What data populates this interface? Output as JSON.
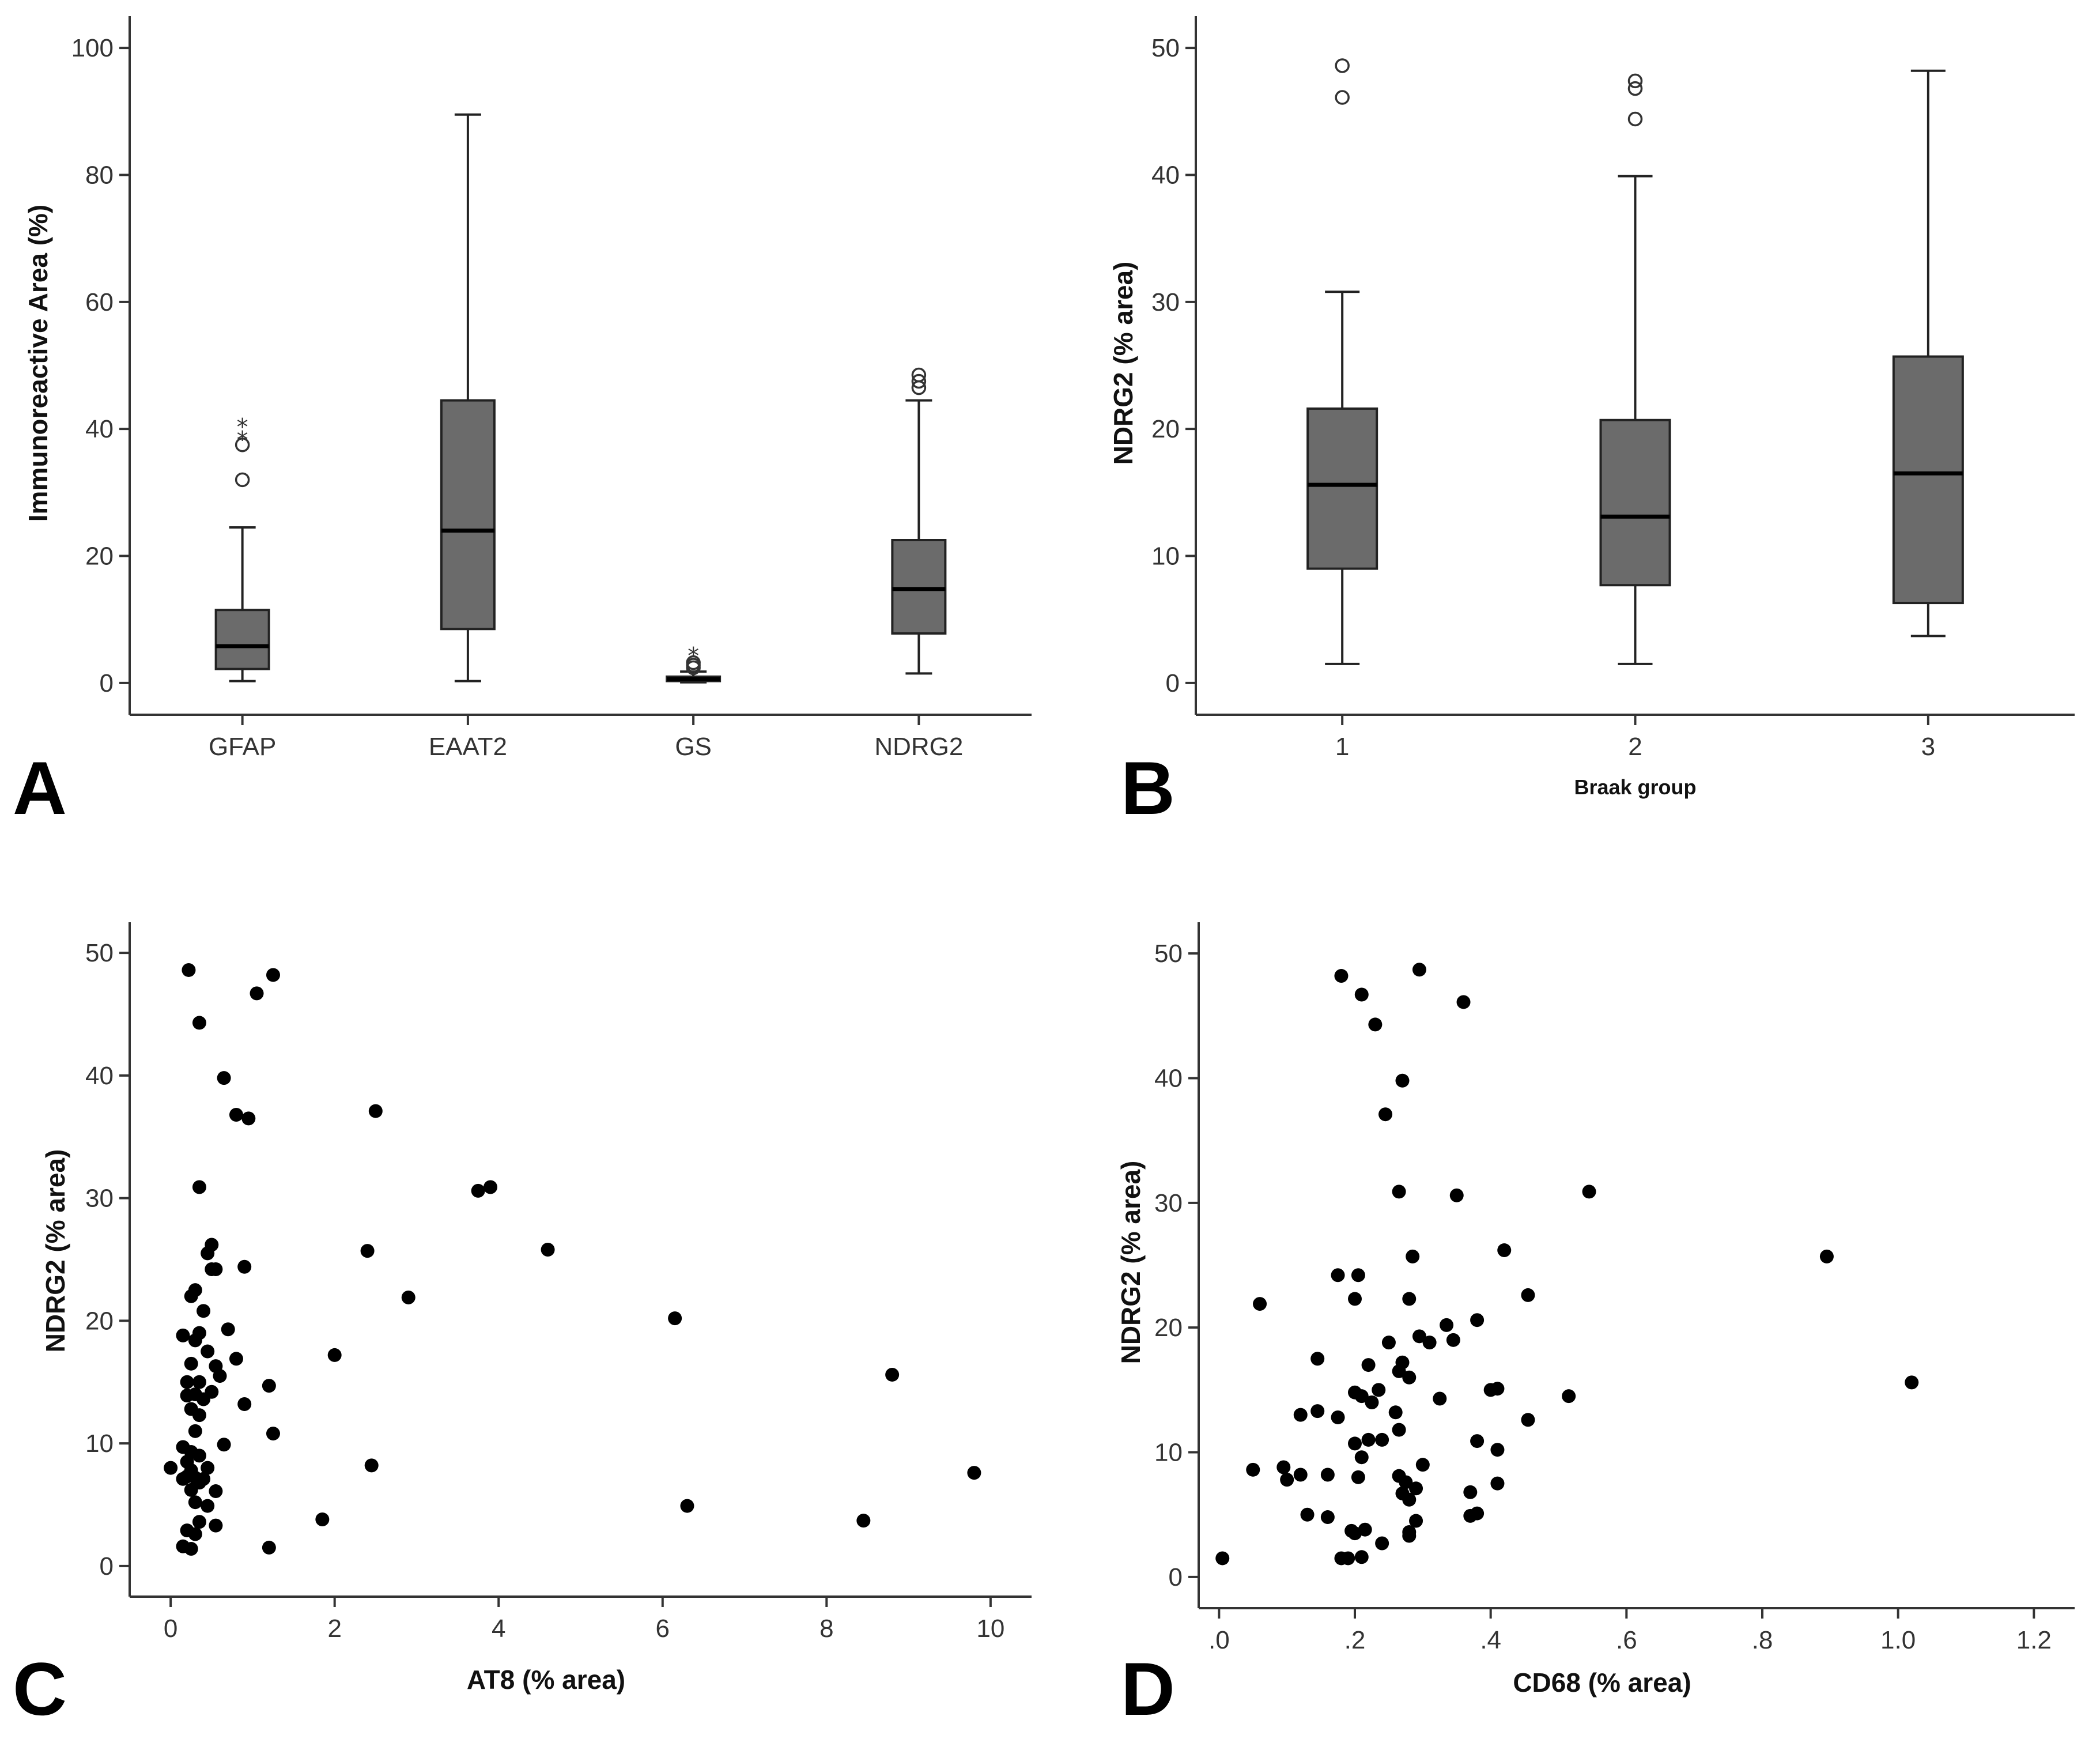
{
  "chart_data": [
    {
      "panel": "A",
      "type": "box",
      "xlabel": "",
      "ylabel": "Immunoreactive Area (%)",
      "ylim": [
        -5,
        105
      ],
      "yticks": [
        0,
        20,
        40,
        60,
        80,
        100
      ],
      "categories": [
        "GFAP",
        "EAAT2",
        "GS",
        "NDRG2"
      ],
      "boxes": [
        {
          "category": "GFAP",
          "min": 0.3,
          "q1": 2.2,
          "median": 5.8,
          "q3": 11.5,
          "max": 24.5,
          "outliers_circle": [
            32.0,
            37.5
          ],
          "outliers_star": [
            38.5,
            40.5
          ]
        },
        {
          "category": "EAAT2",
          "min": 0.3,
          "q1": 8.5,
          "median": 24.0,
          "q3": 44.5,
          "max": 89.5,
          "outliers_circle": [],
          "outliers_star": []
        },
        {
          "category": "GS",
          "min": 0.1,
          "q1": 0.3,
          "median": 0.6,
          "q3": 1.0,
          "max": 1.8,
          "outliers_circle": [
            2.4,
            2.8,
            3.2
          ],
          "outliers_star": [
            4.5
          ]
        },
        {
          "category": "NDRG2",
          "min": 1.5,
          "q1": 7.8,
          "median": 14.8,
          "q3": 22.5,
          "max": 44.5,
          "outliers_circle": [
            46.5,
            47.5,
            48.5
          ],
          "outliers_star": []
        }
      ]
    },
    {
      "panel": "B",
      "type": "box",
      "xlabel": "Braak group",
      "ylabel": "NDRG2 (% area)",
      "ylim": [
        -2.5,
        52.5
      ],
      "yticks": [
        0,
        10,
        20,
        30,
        40,
        50
      ],
      "categories": [
        "1",
        "2",
        "3"
      ],
      "boxes": [
        {
          "category": "1",
          "min": 1.5,
          "q1": 9.0,
          "median": 15.6,
          "q3": 21.6,
          "max": 30.8,
          "outliers_circle": [
            46.1,
            48.6
          ],
          "outliers_star": []
        },
        {
          "category": "2",
          "min": 1.5,
          "q1": 7.7,
          "median": 13.1,
          "q3": 20.7,
          "max": 39.9,
          "outliers_circle": [
            44.4,
            46.8,
            47.4
          ],
          "outliers_star": []
        },
        {
          "category": "3",
          "min": 3.7,
          "q1": 6.3,
          "median": 16.5,
          "q3": 25.7,
          "max": 48.2,
          "outliers_circle": [],
          "outliers_star": []
        }
      ]
    },
    {
      "panel": "C",
      "type": "scatter",
      "xlabel": "AT8 (% area)",
      "ylabel": "NDRG2 (% area)",
      "xlim": [
        -0.5,
        10.5
      ],
      "ylim": [
        -2.5,
        52.5
      ],
      "xticks": [
        0,
        2,
        4,
        6,
        8,
        10
      ],
      "yticks": [
        0,
        10,
        20,
        30,
        40,
        50
      ],
      "x": [
        0.22,
        1.25,
        1.05,
        0.35,
        0.65,
        0.8,
        0.95,
        2.5,
        0.35,
        3.75,
        3.9,
        2.4,
        4.6,
        0.5,
        0.45,
        0.55,
        0.9,
        0.3,
        0.25,
        2.9,
        0.5,
        0.7,
        6.15,
        0.4,
        0.15,
        0.35,
        0.3,
        2.0,
        0.45,
        0.25,
        0.55,
        0.8,
        0.6,
        0.35,
        1.2,
        0.2,
        0.5,
        0.9,
        0.3,
        0.4,
        0.25,
        0.35,
        0.2,
        1.25,
        0.65,
        0.15,
        0.3,
        0.25,
        0.35,
        0.2,
        0.0,
        0.45,
        0.15,
        0.3,
        0.25,
        0.4,
        0.2,
        0.55,
        0.35,
        0.25,
        0.3,
        0.45,
        6.3,
        1.85,
        0.55,
        0.35,
        8.45,
        0.3,
        0.2,
        0.25,
        1.2,
        0.15,
        8.8,
        2.45,
        9.8
      ],
      "y": [
        48.6,
        48.2,
        46.7,
        44.3,
        39.8,
        36.8,
        36.5,
        37.1,
        30.9,
        30.6,
        30.9,
        25.7,
        25.8,
        26.2,
        25.5,
        24.2,
        24.4,
        22.5,
        22.0,
        21.9,
        24.2,
        19.3,
        20.2,
        20.8,
        18.8,
        19.0,
        18.4,
        17.2,
        17.5,
        16.5,
        16.3,
        16.9,
        15.5,
        15.0,
        14.7,
        15.0,
        14.2,
        13.2,
        14.0,
        13.6,
        12.8,
        12.3,
        13.9,
        10.8,
        9.9,
        9.7,
        11.0,
        9.3,
        9.0,
        8.5,
        8.0,
        8.0,
        7.1,
        7.2,
        7.8,
        7.1,
        7.3,
        6.1,
        6.8,
        6.2,
        5.2,
        4.9,
        4.9,
        3.8,
        3.3,
        3.6,
        3.7,
        2.6,
        2.9,
        1.4,
        1.5,
        1.6,
        15.6,
        8.2,
        7.6
      ]
    },
    {
      "panel": "D",
      "type": "scatter",
      "xlabel": "CD68 (% area)",
      "ylabel": "NDRG2 (% area)",
      "xlim": [
        -0.03,
        1.26
      ],
      "ylim": [
        -2.5,
        52.5
      ],
      "xticks": [
        0.0,
        0.2,
        0.4,
        0.6,
        0.8,
        1.0,
        1.2
      ],
      "xtick_labels": [
        ".0",
        ".2",
        ".4",
        ".6",
        ".8",
        "1.0",
        "1.2"
      ],
      "yticks": [
        0,
        10,
        20,
        30,
        40,
        50
      ],
      "x": [
        0.18,
        0.295,
        0.21,
        0.36,
        0.23,
        0.27,
        0.245,
        0.545,
        0.265,
        0.35,
        0.895,
        0.285,
        0.42,
        0.175,
        0.205,
        0.455,
        0.06,
        0.28,
        0.2,
        0.38,
        0.335,
        0.295,
        0.345,
        0.31,
        0.145,
        0.25,
        0.27,
        0.265,
        0.22,
        0.41,
        0.4,
        0.28,
        0.235,
        0.21,
        0.515,
        0.2,
        0.225,
        0.26,
        0.12,
        0.145,
        0.175,
        0.325,
        0.455,
        0.265,
        0.22,
        0.38,
        0.24,
        0.41,
        0.2,
        0.21,
        0.1,
        0.3,
        0.05,
        0.095,
        0.12,
        0.16,
        0.205,
        0.265,
        0.275,
        0.29,
        0.27,
        0.28,
        0.37,
        0.41,
        0.38,
        0.13,
        0.16,
        0.29,
        0.37,
        0.28,
        0.195,
        0.2,
        0.215,
        0.28,
        0.24,
        0.19,
        0.18,
        0.005,
        1.02,
        0.21
      ],
      "y": [
        48.2,
        48.7,
        46.7,
        46.1,
        44.3,
        39.8,
        37.1,
        30.9,
        30.9,
        30.6,
        25.7,
        25.7,
        26.2,
        24.2,
        24.2,
        22.6,
        21.9,
        22.3,
        22.3,
        20.6,
        20.2,
        19.3,
        19.0,
        18.8,
        17.5,
        18.8,
        17.2,
        16.5,
        17.0,
        15.1,
        15.0,
        16.0,
        15.0,
        14.5,
        14.5,
        14.8,
        14.0,
        13.2,
        13.0,
        13.3,
        12.8,
        14.3,
        12.6,
        11.8,
        11.0,
        10.9,
        11.0,
        10.2,
        10.7,
        9.6,
        7.8,
        9.0,
        8.6,
        8.8,
        8.2,
        8.2,
        8.0,
        8.1,
        7.6,
        7.1,
        6.7,
        6.2,
        6.8,
        7.5,
        5.1,
        5.0,
        4.8,
        4.5,
        4.9,
        3.6,
        3.7,
        3.5,
        3.8,
        3.3,
        2.7,
        1.5,
        1.5,
        1.5,
        15.6,
        1.6
      ]
    }
  ],
  "panel_letters": {
    "a": "A",
    "b": "B",
    "c": "C",
    "d": "D"
  }
}
